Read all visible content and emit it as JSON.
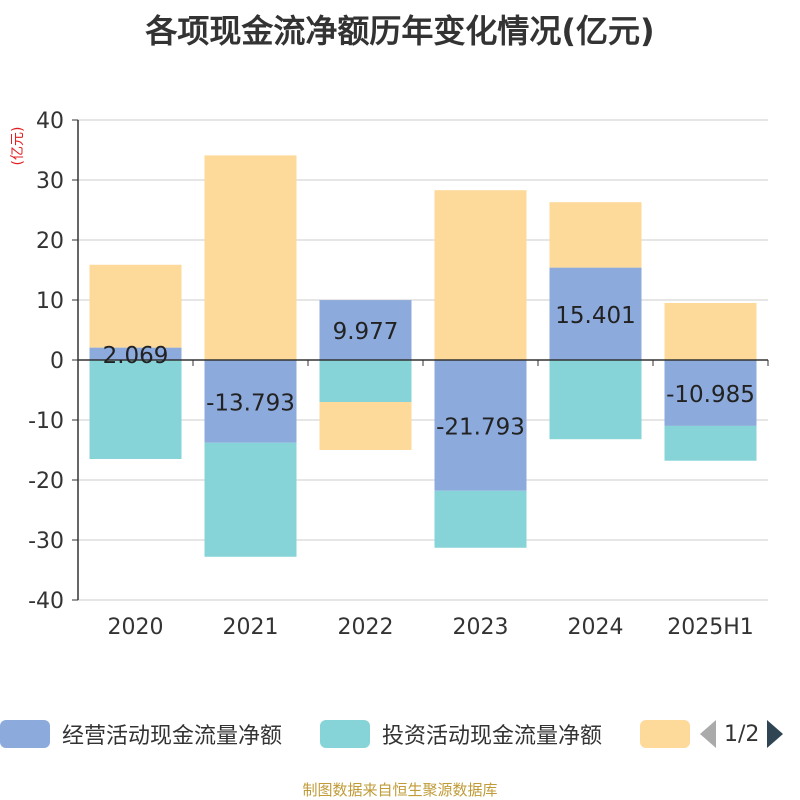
{
  "title": "各项现金流净额历年变化情况(亿元)",
  "source_note": "制图数据来自恒生聚源数据库",
  "legend": {
    "items": [
      {
        "label": "经营活动现金流量净额",
        "color": "#8caadc"
      },
      {
        "label": "投资活动现金流量净额",
        "color": "#86d4d8"
      },
      {
        "label": "",
        "color": "#fdd99a"
      }
    ],
    "pager": "1/2"
  },
  "chart_data": {
    "type": "bar",
    "stacked": true,
    "title": "各项现金流净额历年变化情况(亿元)",
    "ylabel": "(亿元)",
    "xlabel": "",
    "ylim": [
      -40,
      40
    ],
    "yticks": [
      40,
      30,
      20,
      10,
      0,
      -10,
      -20,
      -30,
      -40
    ],
    "grid": true,
    "legend_position": "bottom",
    "categories": [
      "2020",
      "2021",
      "2022",
      "2023",
      "2024",
      "2025H1"
    ],
    "series": [
      {
        "name": "经营活动现金流量净额",
        "color": "#8caadc",
        "values": [
          2.069,
          -13.793,
          9.977,
          -21.793,
          15.401,
          -10.985
        ],
        "labels": [
          "2.069",
          "-13.793",
          "9.977",
          "-21.793",
          "15.401",
          "-10.985"
        ]
      },
      {
        "name": "投资活动现金流量净额",
        "color": "#86d4d8",
        "values": [
          -16.5,
          -19.0,
          -7.0,
          -9.5,
          -13.2,
          -5.8
        ]
      },
      {
        "name": "",
        "color": "#fdd99a",
        "values": [
          13.8,
          34.1,
          -8.0,
          28.3,
          10.9,
          9.5
        ]
      }
    ]
  }
}
